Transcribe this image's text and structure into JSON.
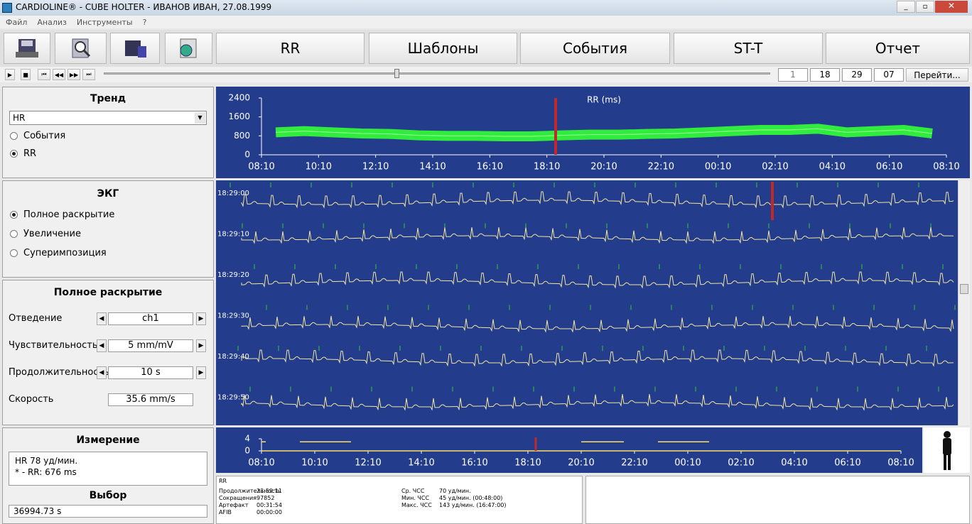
{
  "window": {
    "title": "CARDIOLINE® - CUBE HOLTER - ИВАНОВ ИВАН, 27.08.1999"
  },
  "menu": [
    "Файл",
    "Анализ",
    "Инструменты",
    "?"
  ],
  "tabs": [
    "RR",
    "Шаблоны",
    "События",
    "ST-T",
    "Отчет"
  ],
  "navigation": {
    "fields": [
      "1",
      "18",
      "29",
      "07"
    ],
    "button": "Перейти..."
  },
  "trend": {
    "title": "Тренд",
    "selector": "HR",
    "options": [
      "События",
      "RR"
    ],
    "selected": 1
  },
  "ecg": {
    "title": "ЭКГ",
    "options": [
      "Полное раскрытие",
      "Увеличение",
      "Суперимпозиция"
    ],
    "selected": 0,
    "strip_times": [
      "18:29:00",
      "18:29:10",
      "18:29:20",
      "18:29:30",
      "18:29:40",
      "18:29:50"
    ]
  },
  "settings": {
    "title": "Полное раскрытие",
    "rows": [
      {
        "label": "Отведение",
        "value": "ch1"
      },
      {
        "label": "Чувствительность",
        "value": "5 mm/mV"
      },
      {
        "label": "Продолжительность",
        "value": "10 s"
      },
      {
        "label": "Скорость",
        "value": "35.6 mm/s"
      }
    ]
  },
  "measurement": {
    "title": "Измерение",
    "lines": [
      "HR  78 уд/мин.",
      "* - RR: 676 ms"
    ]
  },
  "selection": {
    "title": "Выбор",
    "value": "36994.73 s"
  },
  "summary": {
    "title": "RR",
    "left": [
      {
        "label": "Продолжительность",
        "value": "23:59:11"
      },
      {
        "label": "Сокращения",
        "value": "97852"
      },
      {
        "label": "Артефакт",
        "value": "00:31:54"
      },
      {
        "label": "AFIB",
        "value": "00:00:00"
      }
    ],
    "right": [
      {
        "label": "Ср. ЧСС",
        "value": "70 уд/мин."
      },
      {
        "label": "Мин. ЧСС",
        "value": "45 уд/мин. (00:48:00)"
      },
      {
        "label": "Макс. ЧСС",
        "value": "143 уд/мин. (16:47:00)"
      }
    ]
  },
  "chart_data": [
    {
      "type": "line",
      "title": "RR (ms)",
      "color": "#33ff33",
      "ylim": [
        0,
        2400
      ],
      "yticks": [
        0,
        800,
        1600,
        2400
      ],
      "xtick_labels": [
        "08:10",
        "10:10",
        "12:10",
        "14:10",
        "16:10",
        "18:10",
        "20:10",
        "22:10",
        "00:10",
        "02:10",
        "04:10",
        "06:10",
        "08:10"
      ],
      "values": [
        950,
        1000,
        950,
        900,
        880,
        820,
        800,
        800,
        780,
        780,
        820,
        850,
        850,
        880,
        900,
        950,
        1000,
        1050,
        1050,
        1100,
        950,
        1000,
        1050,
        900
      ]
    },
    {
      "type": "events",
      "color": "#ffe066",
      "ylim": [
        0,
        4
      ],
      "yticks": [
        0,
        4
      ],
      "xtick_labels": [
        "08:10",
        "10:10",
        "12:10",
        "14:10",
        "16:10",
        "18:10",
        "20:10",
        "22:10",
        "00:10",
        "02:10",
        "04:10",
        "06:10",
        "08:10"
      ]
    }
  ]
}
